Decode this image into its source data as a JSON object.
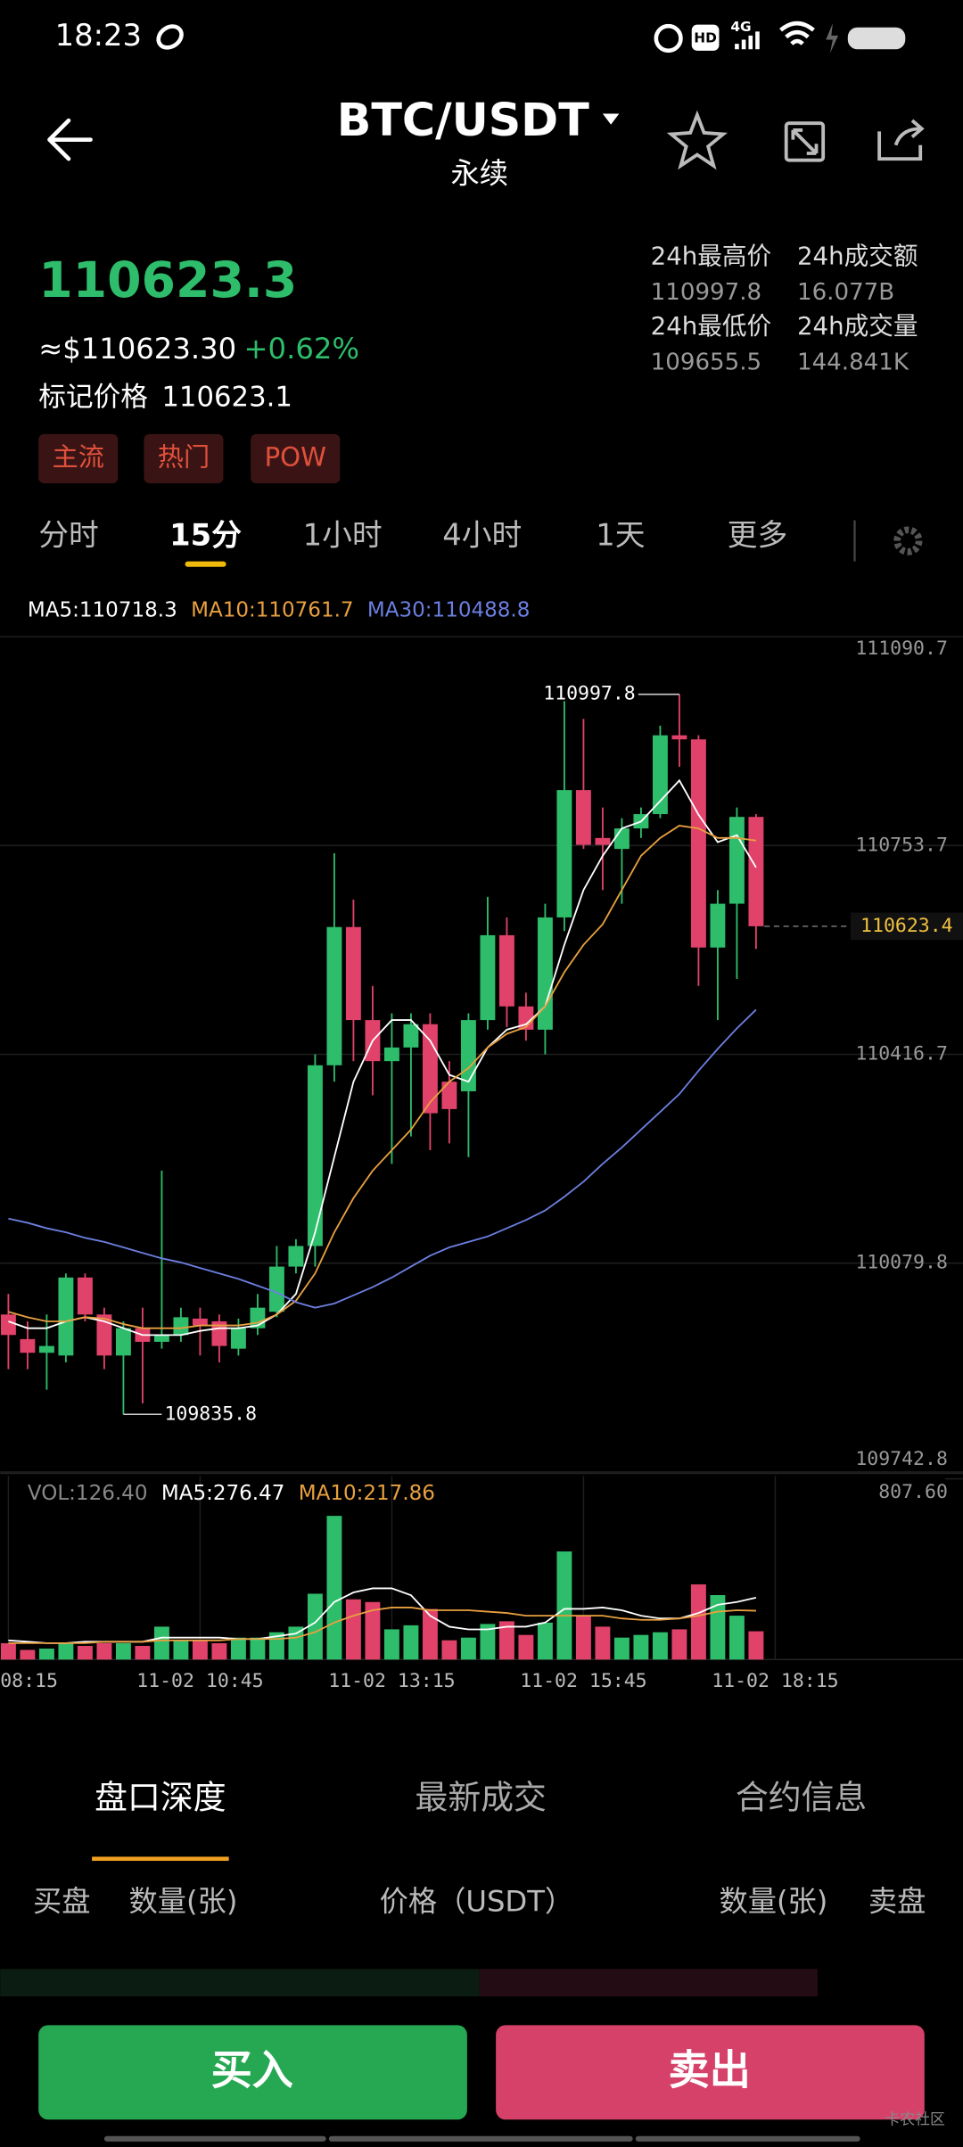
{
  "status_bar": {
    "time": "18:23",
    "hd": "HD",
    "network": "4G"
  },
  "header": {
    "pair": "BTC/USDT",
    "subtitle": "永续"
  },
  "ticker": {
    "price": "110623.3",
    "usd_price": "≈$110623.30",
    "change": "+0.62%",
    "mark_label": "标记价格",
    "mark_price": "110623.1",
    "tags": [
      "主流",
      "热门",
      "POW"
    ],
    "stats": [
      {
        "label": "24h最高价",
        "value": "110997.8"
      },
      {
        "label": "24h成交额",
        "value": "16.077B"
      },
      {
        "label": "24h最低价",
        "value": "109655.5"
      },
      {
        "label": "24h成交量",
        "value": "144.841K"
      }
    ]
  },
  "intervals": {
    "items": [
      "分时",
      "15分",
      "1小时",
      "4小时",
      "1天",
      "更多"
    ],
    "active": 1
  },
  "chart_data": [
    {
      "type": "candlestick",
      "up_color": "#2ebd6b",
      "down_color": "#e0426a",
      "ylim": [
        109742.8,
        111090.7
      ],
      "yticks": [
        111090.7,
        110753.7,
        110416.7,
        110079.8,
        109742.8
      ],
      "open": [
        109996.9,
        109957.2,
        109935.1,
        109930.7,
        110056.6,
        109996.9,
        109930.7,
        109974.8,
        109952.8,
        109963.8,
        109990.3,
        109985.9,
        109941.7,
        109974.8,
        110001.3,
        110074.2,
        110107.4,
        110399.1,
        110622.2,
        110472.0,
        110405.7,
        110427.8,
        110465.4,
        110372.6,
        110357.1,
        110472.0,
        110609.0,
        110494.1,
        110456.5,
        110637.7,
        110843.2,
        110765.9,
        110748.2,
        110781.3,
        110804.4,
        110931.6,
        110925.0,
        110589.1,
        110659.8,
        110799.9,
        null
      ],
      "high": [
        110030.0,
        109985.9,
        109996.9,
        110063.2,
        110063.2,
        110007.9,
        109985.9,
        110007.9,
        110229.0,
        110007.9,
        110007.9,
        109996.9,
        109990.3,
        110030.0,
        110107.4,
        110118.4,
        110416.8,
        110741.3,
        110666.4,
        110527.2,
        110483.0,
        110483.0,
        110483.0,
        110405.7,
        110483.0,
        110670.8,
        110637.7,
        110516.2,
        110659.8,
        110986.8,
        110958.1,
        110815.1,
        110797.8,
        110815.1,
        110947.1,
        110997.8,
        110931.6,
        110681.9,
        110815.1,
        110804.4,
        null
      ],
      "low": [
        109908.6,
        109908.6,
        109875.5,
        109919.6,
        109985.9,
        109908.6,
        109835.8,
        109853.4,
        109941.7,
        109952.8,
        109930.7,
        109919.6,
        109930.7,
        109963.8,
        109992.5,
        110063.2,
        110074.2,
        110372.6,
        110405.7,
        110350.5,
        110240.0,
        110284.2,
        110262.1,
        110273.1,
        110251.0,
        110456.5,
        110460.9,
        110438.8,
        110416.8,
        110615.6,
        110748.2,
        110681.9,
        110659.8,
        110765.9,
        110797.8,
        110880.8,
        110527.2,
        110472.0,
        110538.3,
        110586.9,
        null
      ],
      "close": [
        109963.8,
        109935.1,
        109946.1,
        110056.6,
        109996.9,
        109930.7,
        109974.8,
        109952.8,
        109963.8,
        109992.5,
        109979.3,
        109946.1,
        109974.8,
        110007.9,
        110074.2,
        110107.4,
        110399.1,
        110622.2,
        110472.0,
        110405.7,
        110427.8,
        110465.4,
        110321.7,
        110328.4,
        110472.0,
        110609.0,
        110494.1,
        110456.5,
        110637.7,
        110843.2,
        110754.8,
        110754.8,
        110781.3,
        110804.4,
        110931.6,
        110925.0,
        110589.1,
        110659.8,
        110799.9,
        110623.4,
        null
      ],
      "lines": [
        {
          "label": "MA5:110718.3",
          "color": "#ffffff",
          "values": [
            109985.8,
            109974.8,
            109974.8,
            109985.8,
            109992.5,
            109985.8,
            109974.8,
            109963.7,
            109963.7,
            109963.7,
            109970.4,
            109974.8,
            109974.8,
            109979.2,
            109996.9,
            110030.0,
            110129.5,
            110251.0,
            110372.5,
            110438.8,
            110472.0,
            110472.0,
            110438.8,
            110383.6,
            110372.5,
            110427.8,
            110456.5,
            110465.3,
            110494.1,
            110593.5,
            110681.9,
            110737.1,
            110781.3,
            110792.4,
            110825.5,
            110858.7,
            110803.4,
            110759.2,
            110770.3,
            110718.3,
            null
          ]
        },
        {
          "label": "MA10:110761.7",
          "color": "#e8a040",
          "values": [
            110001.3,
            109992.5,
            109985.8,
            109985.8,
            109992.5,
            109990.3,
            109981.4,
            109974.8,
            109974.8,
            109974.8,
            109979.2,
            109979.2,
            109979.2,
            109983.6,
            109996.9,
            110019.0,
            110063.2,
            110129.5,
            110184.7,
            110228.9,
            110262.1,
            110295.2,
            110339.4,
            110372.5,
            110394.6,
            110427.8,
            110449.9,
            110460.9,
            110494.1,
            110549.3,
            110593.5,
            110626.7,
            110681.9,
            110737.1,
            110765.9,
            110785.8,
            110781.3,
            110765.9,
            110765.9,
            110761.7,
            null
          ]
        },
        {
          "label": "MA30:110488.8",
          "color": "#6c7fe0",
          "values": [
            110151.6,
            110144.9,
            110136.1,
            110129.5,
            110120.6,
            110114.0,
            110105.2,
            110096.3,
            110087.5,
            110080.9,
            110072.0,
            110063.2,
            110054.3,
            110043.3,
            110032.3,
            110016.8,
            110007.9,
            110014.6,
            110027.8,
            110041.1,
            110056.5,
            110074.2,
            110091.9,
            110105.2,
            110114.0,
            110122.8,
            110136.1,
            110149.4,
            110164.8,
            110186.9,
            110211.3,
            110240.0,
            110266.5,
            110295.2,
            110323.9,
            110352.7,
            110390.2,
            110425.6,
            110458.7,
            110488.8,
            null
          ]
        }
      ]
    },
    {
      "type": "bar",
      "label": "VOL:126.40",
      "ylim": [
        0,
        807.6
      ],
      "yticks": [
        {
          "value": 807.6,
          "label": "807.60"
        }
      ],
      "categories": [
        "08:15",
        null,
        null,
        null,
        null,
        null,
        null,
        null,
        null,
        null,
        "11-02 10:45",
        null,
        null,
        null,
        null,
        null,
        null,
        null,
        null,
        null,
        "11-02 13:15",
        null,
        null,
        null,
        null,
        null,
        null,
        null,
        null,
        null,
        "11-02 15:45",
        null,
        null,
        null,
        null,
        null,
        null,
        null,
        null,
        null,
        "11-02 18:15"
      ],
      "values": [
        73,
        43,
        49,
        73,
        61,
        73,
        73,
        61,
        147,
        86,
        86,
        73,
        98,
        98,
        122,
        147,
        294,
        642,
        269,
        257,
        135,
        153,
        226,
        86,
        98,
        159,
        171,
        110,
        165,
        483,
        196,
        147,
        98,
        110,
        122,
        135,
        336,
        288,
        196,
        126.4,
        null
      ],
      "lines": [
        {
          "label": "MA5:276.47",
          "color": "#ffffff",
          "values": [
            85.7,
            79.5,
            73.4,
            73.4,
            79.5,
            79.5,
            79.5,
            79.5,
            97.9,
            97.9,
            97.9,
            97.9,
            91.8,
            91.8,
            104.0,
            116.2,
            165.2,
            257.0,
            299.8,
            318.1,
            318.1,
            287.5,
            195.8,
            146.8,
            134.6,
            134.6,
            146.8,
            146.8,
            165.2,
            226.4,
            226.4,
            232.5,
            220.2,
            195.8,
            183.5,
            183.5,
            208.0,
            244.7,
            257.0,
            276.47,
            null
          ]
        },
        {
          "label": "MA10:217.86",
          "color": "#e8a040",
          "values": [
            73.4,
            73.4,
            73.4,
            73.4,
            73.4,
            79.5,
            79.5,
            79.5,
            85.7,
            85.7,
            85.7,
            85.7,
            91.8,
            91.8,
            91.8,
            97.9,
            122.4,
            165.2,
            195.8,
            220.2,
            232.5,
            232.5,
            220.2,
            220.2,
            220.2,
            214.1,
            208.0,
            195.8,
            195.8,
            195.8,
            195.8,
            195.8,
            183.5,
            177.4,
            177.4,
            183.5,
            195.8,
            214.1,
            220.2,
            217.86,
            null
          ]
        }
      ]
    }
  ],
  "tabs": {
    "items": [
      "盘口深度",
      "最新成交",
      "合约信息"
    ],
    "active": 0
  },
  "order_book": {
    "columns": [
      "买盘",
      "数量(张)",
      "价格（USDT）",
      "数量(张)",
      "卖盘"
    ]
  },
  "buttons": {
    "buy": "买入",
    "sell": "卖出"
  },
  "watermark": "卡农社区"
}
